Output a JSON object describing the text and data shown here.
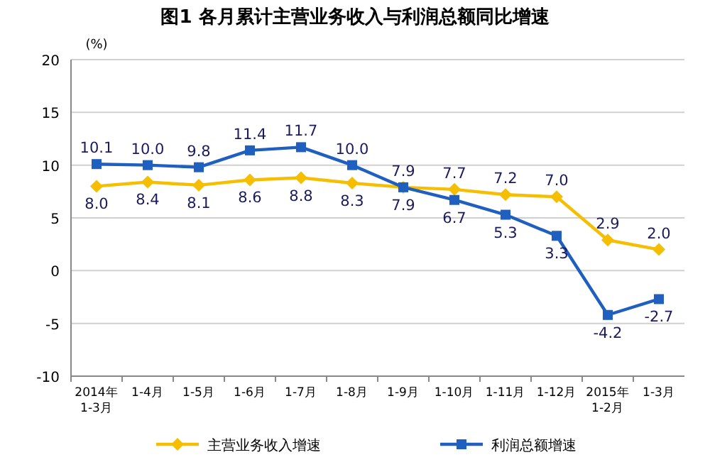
{
  "chart_data": {
    "type": "line",
    "title": "图1  各月累计主营业务收入与利润总额同比增速",
    "ylabel": "(%)",
    "categories": [
      "2014年 1-3月",
      "1-4月",
      "1-5月",
      "1-6月",
      "1-7月",
      "1-8月",
      "1-9月",
      "1-10月",
      "1-11月",
      "1-12月",
      "2015年 1-2月",
      "1-3月"
    ],
    "series": [
      {
        "name": "主营业务收入增速",
        "color": "#f5be00",
        "marker": "diamond",
        "values": [
          8.0,
          8.4,
          8.1,
          8.6,
          8.8,
          8.3,
          7.9,
          7.7,
          7.2,
          7.0,
          2.9,
          2.0
        ],
        "value_labels": [
          "8.0",
          "8.4",
          "8.1",
          "8.6",
          "8.8",
          "8.3",
          "7.9",
          "7.7",
          "7.2",
          "7.0",
          "2.9",
          "2.0"
        ]
      },
      {
        "name": "利润总额增速",
        "color": "#1f5fbf",
        "marker": "square",
        "values": [
          10.1,
          10.0,
          9.8,
          11.4,
          11.7,
          10.0,
          7.9,
          6.7,
          5.3,
          3.3,
          -4.2,
          -2.7
        ],
        "value_labels": [
          "10.1",
          "10.0",
          "9.8",
          "11.4",
          "11.7",
          "10.0",
          "7.9",
          "6.7",
          "5.3",
          "3.3",
          "-4.2",
          "-2.7"
        ]
      }
    ],
    "ylim": [
      -10,
      20
    ],
    "yticks": [
      -10,
      -5,
      0,
      5,
      10,
      15,
      20
    ],
    "grid": "y",
    "legend": "bottom"
  }
}
